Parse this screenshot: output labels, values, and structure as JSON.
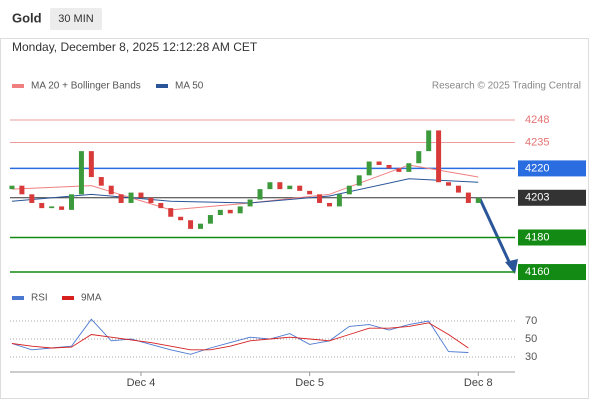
{
  "header": {
    "symbol": "Gold",
    "timeframe": "30 MIN",
    "datetime": "Monday, December 8, 2025 12:12:28 AM CET",
    "credit": "Research © 2025 Trading Central"
  },
  "chart_data": [
    {
      "type": "candlestick",
      "open": [
        4208,
        4210,
        4205,
        4200,
        4197,
        4198,
        4196,
        4205,
        4230,
        4215,
        4210,
        4205,
        4200,
        4206,
        4203,
        4200,
        4197,
        4192,
        4190,
        4185,
        4188,
        4193,
        4196,
        4194,
        4198,
        4202,
        4208,
        4212,
        4208,
        4210,
        4207,
        4205,
        4200,
        4198,
        4205,
        4210,
        4216,
        4224,
        4222,
        4220,
        4218,
        4223,
        4230,
        4242,
        4212,
        4210,
        4206,
        4200
      ],
      "close": [
        4210,
        4205,
        4200,
        4197,
        4198,
        4196,
        4205,
        4230,
        4215,
        4210,
        4205,
        4200,
        4206,
        4203,
        4200,
        4197,
        4192,
        4190,
        4185,
        4188,
        4193,
        4196,
        4194,
        4198,
        4202,
        4208,
        4212,
        4208,
        4210,
        4207,
        4205,
        4200,
        4198,
        4205,
        4210,
        4216,
        4224,
        4222,
        4220,
        4218,
        4223,
        4230,
        4242,
        4212,
        4210,
        4206,
        4200,
        4203
      ],
      "up_color": "#3c9a3c",
      "down_color": "#d83a3a",
      "series": [
        {
          "name": "MA 20 + Bollinger Bands",
          "color": "#f08080",
          "x": [
            0,
            8,
            16,
            24,
            32,
            40,
            47
          ],
          "values": [
            4208,
            4210,
            4196,
            4200,
            4205,
            4222,
            4215
          ]
        },
        {
          "name": "MA 50",
          "color": "#2a5599",
          "x": [
            0,
            8,
            16,
            24,
            32,
            40,
            47
          ],
          "values": [
            4201,
            4205,
            4201,
            4200,
            4204,
            4214,
            4212
          ]
        }
      ],
      "levels": [
        {
          "value": 4248,
          "color": "#e57373",
          "style": "text"
        },
        {
          "value": 4235,
          "color": "#e57373",
          "style": "text"
        },
        {
          "value": 4220,
          "color": "#2a6de0",
          "style": "box"
        },
        {
          "value": 4203,
          "color": "#333333",
          "style": "box"
        },
        {
          "value": 4180,
          "color": "#138a13",
          "style": "box"
        },
        {
          "value": 4160,
          "color": "#138a13",
          "style": "box"
        }
      ],
      "xlim": [
        -0.2,
        50.7
      ],
      "ylim": [
        4152.5,
        4262.5
      ],
      "xticks": [
        {
          "value": 13,
          "label": "Dec 4"
        },
        {
          "value": 30,
          "label": "Dec 5"
        },
        {
          "value": 47,
          "label": "Dec 8"
        }
      ]
    },
    {
      "type": "line",
      "series": [
        {
          "name": "RSI",
          "color": "#4a78d0",
          "x": [
            0,
            2,
            4,
            6,
            8,
            10,
            12,
            14,
            16,
            18,
            20,
            22,
            24,
            26,
            28,
            30,
            32,
            34,
            36,
            38,
            40,
            42,
            44,
            46
          ],
          "values": [
            45,
            38,
            40,
            42,
            72,
            48,
            50,
            44,
            38,
            33,
            40,
            46,
            52,
            50,
            56,
            44,
            48,
            64,
            66,
            60,
            66,
            70,
            36,
            35
          ]
        },
        {
          "name": "9MA",
          "color": "#d62020",
          "x": [
            0,
            2,
            4,
            6,
            8,
            10,
            12,
            14,
            16,
            18,
            20,
            22,
            24,
            26,
            28,
            30,
            32,
            34,
            36,
            38,
            40,
            42,
            44,
            46
          ],
          "values": [
            45,
            42,
            40,
            41,
            55,
            52,
            49,
            46,
            42,
            38,
            38,
            42,
            48,
            50,
            52,
            50,
            48,
            55,
            62,
            62,
            64,
            68,
            55,
            40
          ]
        }
      ],
      "xlim": [
        -0.2,
        50.7
      ],
      "ylim": [
        20,
        80
      ],
      "yticks": [
        30,
        50,
        70
      ]
    }
  ]
}
